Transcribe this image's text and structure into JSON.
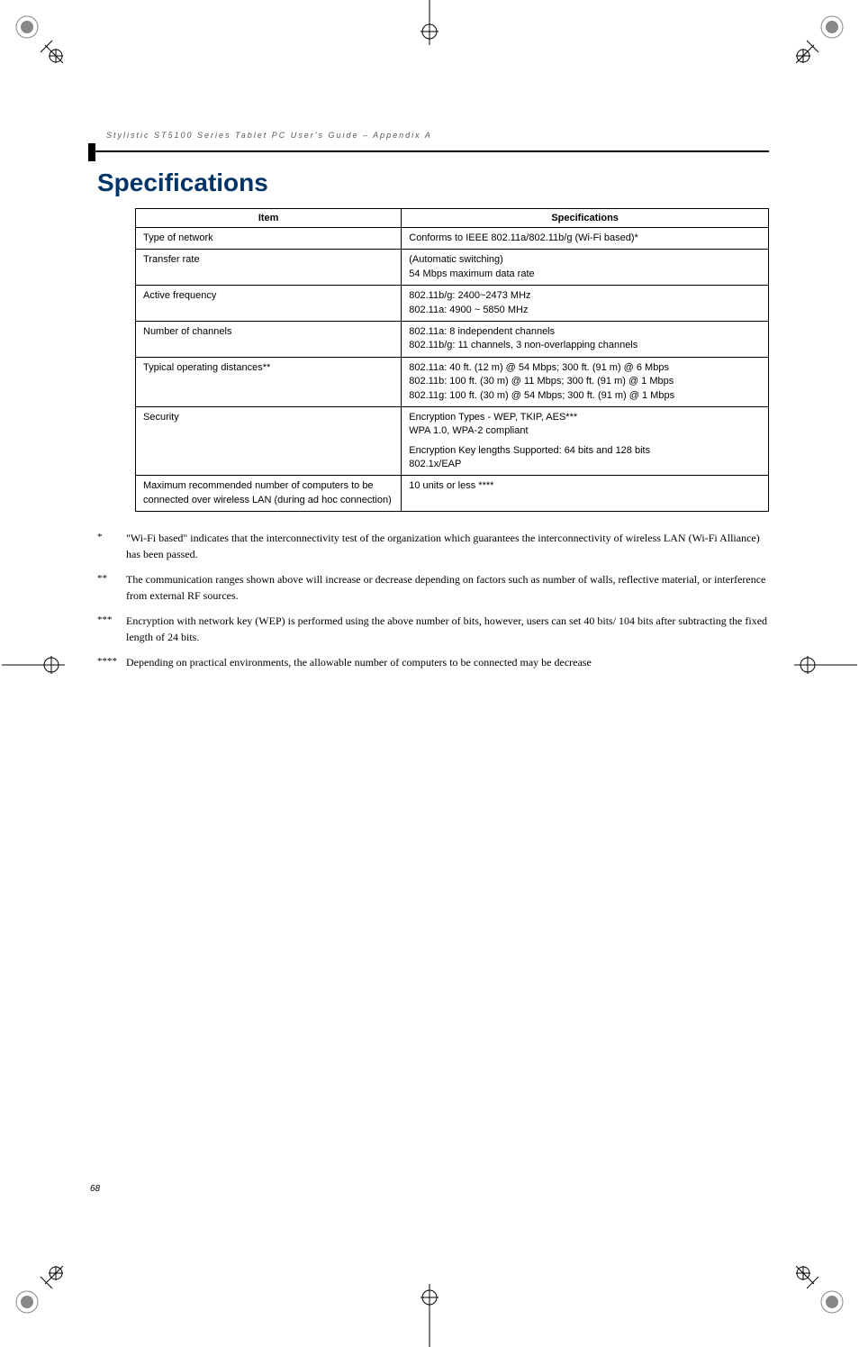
{
  "runningHeader": "Stylistic ST5100 Series Tablet PC User's Guide – Appendix A",
  "sectionTitle": "Specifications",
  "table": {
    "headers": [
      "Item",
      "Specifications"
    ],
    "rows": [
      {
        "item": "Type of network",
        "spec": "Conforms to IEEE 802.11a/802.11b/g (Wi-Fi based)*"
      },
      {
        "item": "Transfer rate",
        "spec": "(Automatic switching)\n54 Mbps maximum data rate"
      },
      {
        "item": "Active frequency",
        "spec": "802.11b/g: 2400~2473 MHz\n802.11a: 4900 ~ 5850 MHz"
      },
      {
        "item": "Number of channels",
        "spec": "802.11a: 8 independent channels\n802.11b/g: 11 channels, 3 non-overlapping channels"
      },
      {
        "item": "Typical operating distances**",
        "spec": "802.11a: 40 ft. (12 m) @ 54 Mbps; 300 ft. (91 m) @ 6 Mbps\n802.11b: 100 ft. (30 m) @ 11 Mbps; 300 ft. (91 m) @ 1 Mbps\n802.11g: 100 ft. (30 m) @ 54 Mbps; 300 ft. (91 m) @ 1 Mbps"
      },
      {
        "item": "Security",
        "spec": "Encryption Types - WEP, TKIP, AES***\nWPA 1.0, WPA-2 compliant\n\nEncryption Key lengths Supported: 64 bits and 128 bits\n802.1x/EAP"
      },
      {
        "item": "Maximum recommended number of computers to be connected over wireless LAN (during ad hoc connection)",
        "spec": "10 units or less ****"
      }
    ]
  },
  "footnotes": [
    {
      "marker": "*",
      "text": "\"Wi-Fi based\" indicates that the interconnectivity test of the organization which guarantees the interconnectivity of wireless LAN (Wi-Fi Alliance) has been passed."
    },
    {
      "marker": "**",
      "text": "The communication ranges shown above will increase or decrease depending on factors such as number of walls, reflective material, or interference from external RF sources."
    },
    {
      "marker": "***",
      "text": "Encryption with network key (WEP) is performed using the above number of bits, however, users can set 40 bits/ 104 bits after subtracting the fixed length of 24 bits."
    },
    {
      "marker": "****",
      "text": "Depending on practical environments, the allowable number of computers to be connected may be decrease"
    }
  ],
  "pageNumber": "68",
  "colors": {
    "titleColor": "#003366",
    "borderColor": "#000000",
    "textColor": "#000000"
  }
}
